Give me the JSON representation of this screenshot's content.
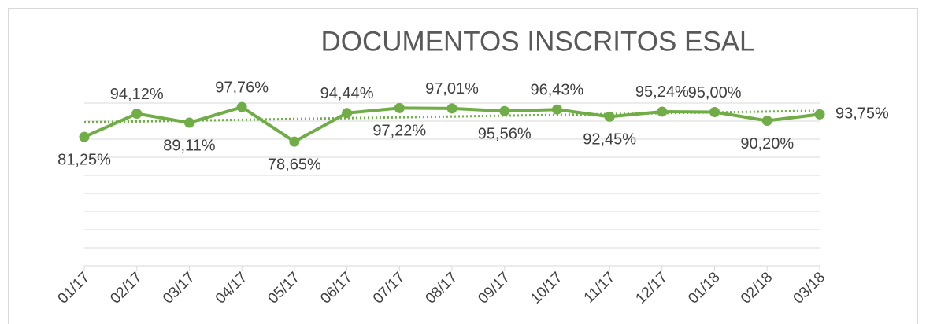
{
  "chart_data": {
    "type": "line",
    "title": "DOCUMENTOS INSCRITOS ESAL",
    "categories": [
      "01/17",
      "02/17",
      "03/17",
      "04/17",
      "05/17",
      "06/17",
      "07/17",
      "08/17",
      "09/17",
      "10/17",
      "11/17",
      "12/17",
      "01/18",
      "02/18",
      "03/18"
    ],
    "series": [
      {
        "name": "ESAL",
        "color": "#70ad47",
        "values": [
          81.25,
          94.12,
          89.11,
          97.76,
          78.65,
          94.44,
          97.22,
          97.01,
          95.56,
          96.43,
          92.45,
          95.24,
          95.0,
          90.2,
          93.75
        ],
        "value_labels": [
          "81,25%",
          "94,12%",
          "89,11%",
          "97,76%",
          "78,65%",
          "94,44%",
          "97,22%",
          "97,01%",
          "95,56%",
          "96,43%",
          "92,45%",
          "95,24%",
          "95,00%",
          "90,20%",
          "93,75%"
        ]
      }
    ],
    "ylim": [
      10,
      100
    ],
    "yticks": [
      10,
      20,
      30,
      40,
      50,
      60,
      70,
      80,
      90,
      100
    ],
    "grid": true,
    "trendline": true
  }
}
